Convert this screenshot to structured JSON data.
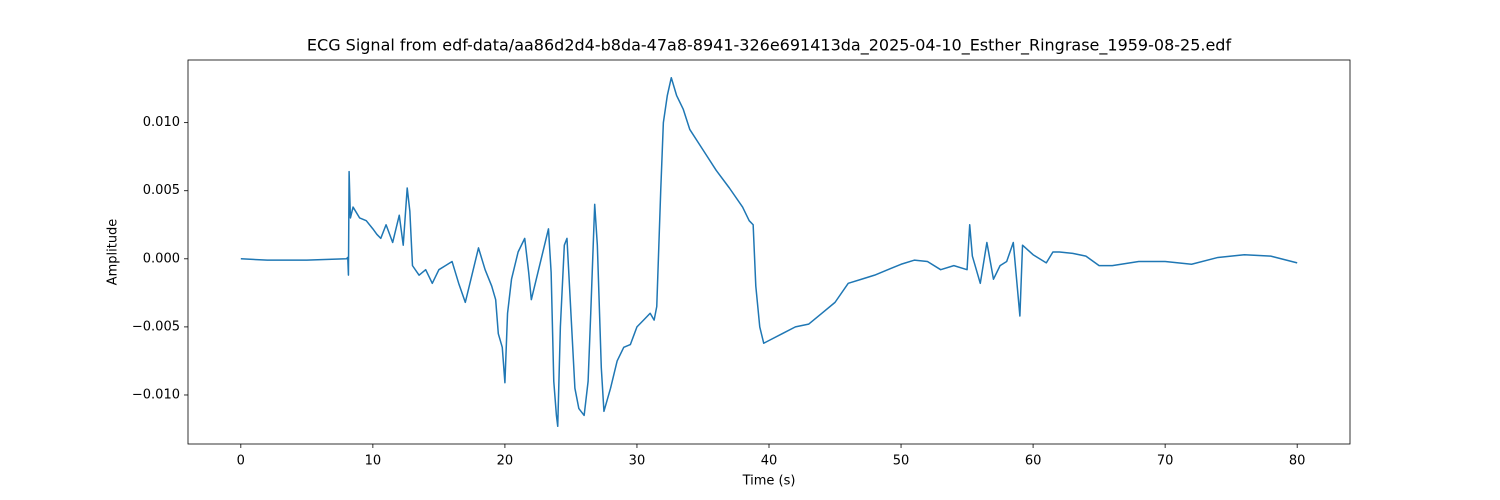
{
  "chart_data": {
    "type": "line",
    "title": "ECG Signal from edf-data/aa86d2d4-b8da-47a8-8941-326e691413da_2025-04-10_Esther_Ringrase_1959-08-25.edf",
    "x_label": "Time (s)",
    "y_label": "Amplitude",
    "color": "#1f77b4",
    "xlim": [
      -4,
      84
    ],
    "ylim": [
      -0.0136,
      0.0146
    ],
    "xticks": [
      0,
      10,
      20,
      30,
      40,
      50,
      60,
      70,
      80
    ],
    "yticks": [
      {
        "value": -0.01,
        "label": "−0.010"
      },
      {
        "value": -0.005,
        "label": "−0.005"
      },
      {
        "value": 0,
        "label": "0.000"
      },
      {
        "value": 0.005,
        "label": "0.005"
      },
      {
        "value": 0.01,
        "label": "0.010"
      }
    ],
    "x": [
      0,
      2,
      5,
      8,
      8.1,
      8.15,
      8.2,
      8.3,
      8.5,
      9,
      9.5,
      10,
      10.3,
      10.6,
      11,
      11.5,
      12,
      12.3,
      12.6,
      12.8,
      13,
      13.5,
      14,
      14.5,
      15,
      15.5,
      16,
      16.5,
      17,
      17.5,
      18,
      18.5,
      19,
      19.3,
      19.5,
      19.8,
      20,
      20.2,
      20.5,
      21,
      21.5,
      21.8,
      22,
      22.5,
      23,
      23.3,
      23.5,
      23.7,
      23.9,
      24,
      24.2,
      24.5,
      24.7,
      25,
      25.3,
      25.6,
      26,
      26.3,
      26.5,
      26.8,
      27,
      27.3,
      27.5,
      28,
      28.5,
      29,
      29.5,
      30,
      30.5,
      31,
      31.3,
      31.5,
      31.8,
      32,
      32.3,
      32.6,
      33,
      33.5,
      34,
      35,
      36,
      37,
      38,
      38.5,
      38.8,
      39,
      39.3,
      39.6,
      40,
      41,
      42,
      43,
      44,
      45,
      46,
      47,
      48,
      49,
      50,
      51,
      52,
      53,
      54,
      55,
      55.2,
      55.4,
      56,
      56.5,
      57,
      57.5,
      58,
      58.5,
      59,
      59.2,
      60,
      61,
      61.5,
      62,
      63,
      64,
      65,
      66,
      68,
      70,
      72,
      74,
      76,
      78,
      80
    ],
    "values": [
      0,
      -0.0001,
      -0.0001,
      0,
      0.0001,
      -0.0012,
      0.0064,
      0.003,
      0.0038,
      0.003,
      0.0028,
      0.0022,
      0.0018,
      0.0015,
      0.0025,
      0.0012,
      0.0032,
      0.001,
      0.0052,
      0.0035,
      -0.0005,
      -0.0012,
      -0.0008,
      -0.0018,
      -0.0008,
      -0.0005,
      -0.0002,
      -0.0018,
      -0.0032,
      -0.0012,
      0.0008,
      -0.0008,
      -0.002,
      -0.003,
      -0.0055,
      -0.0065,
      -0.0091,
      -0.004,
      -0.0015,
      0.0005,
      0.0015,
      -0.001,
      -0.003,
      -0.001,
      0.001,
      0.0022,
      -0.001,
      -0.009,
      -0.0115,
      -0.0123,
      -0.005,
      0.001,
      0.0015,
      -0.004,
      -0.0095,
      -0.011,
      -0.0115,
      -0.009,
      -0.004,
      0.004,
      0.001,
      -0.008,
      -0.0112,
      -0.0095,
      -0.0075,
      -0.0065,
      -0.0063,
      -0.005,
      -0.0045,
      -0.004,
      -0.0045,
      -0.0035,
      0.005,
      0.01,
      0.012,
      0.0133,
      0.012,
      0.011,
      0.0095,
      0.008,
      0.0065,
      0.0052,
      0.0038,
      0.0028,
      0.0025,
      -0.002,
      -0.005,
      -0.0062,
      -0.006,
      -0.0055,
      -0.005,
      -0.0048,
      -0.004,
      -0.0032,
      -0.0018,
      -0.0015,
      -0.0012,
      -0.0008,
      -0.0004,
      -0.0001,
      -0.0002,
      -0.0008,
      -0.0005,
      -0.0008,
      0.0025,
      0.0002,
      -0.0018,
      0.0012,
      -0.0015,
      -0.0005,
      -0.0002,
      0.0012,
      -0.0042,
      0.001,
      0.0003,
      -0.0003,
      0.0005,
      0.0005,
      0.0004,
      0.0002,
      -0.0005,
      -0.0005,
      -0.0002,
      -0.0002,
      -0.0004,
      0.0001,
      0.0003,
      0.0002,
      -0.0003
    ]
  }
}
